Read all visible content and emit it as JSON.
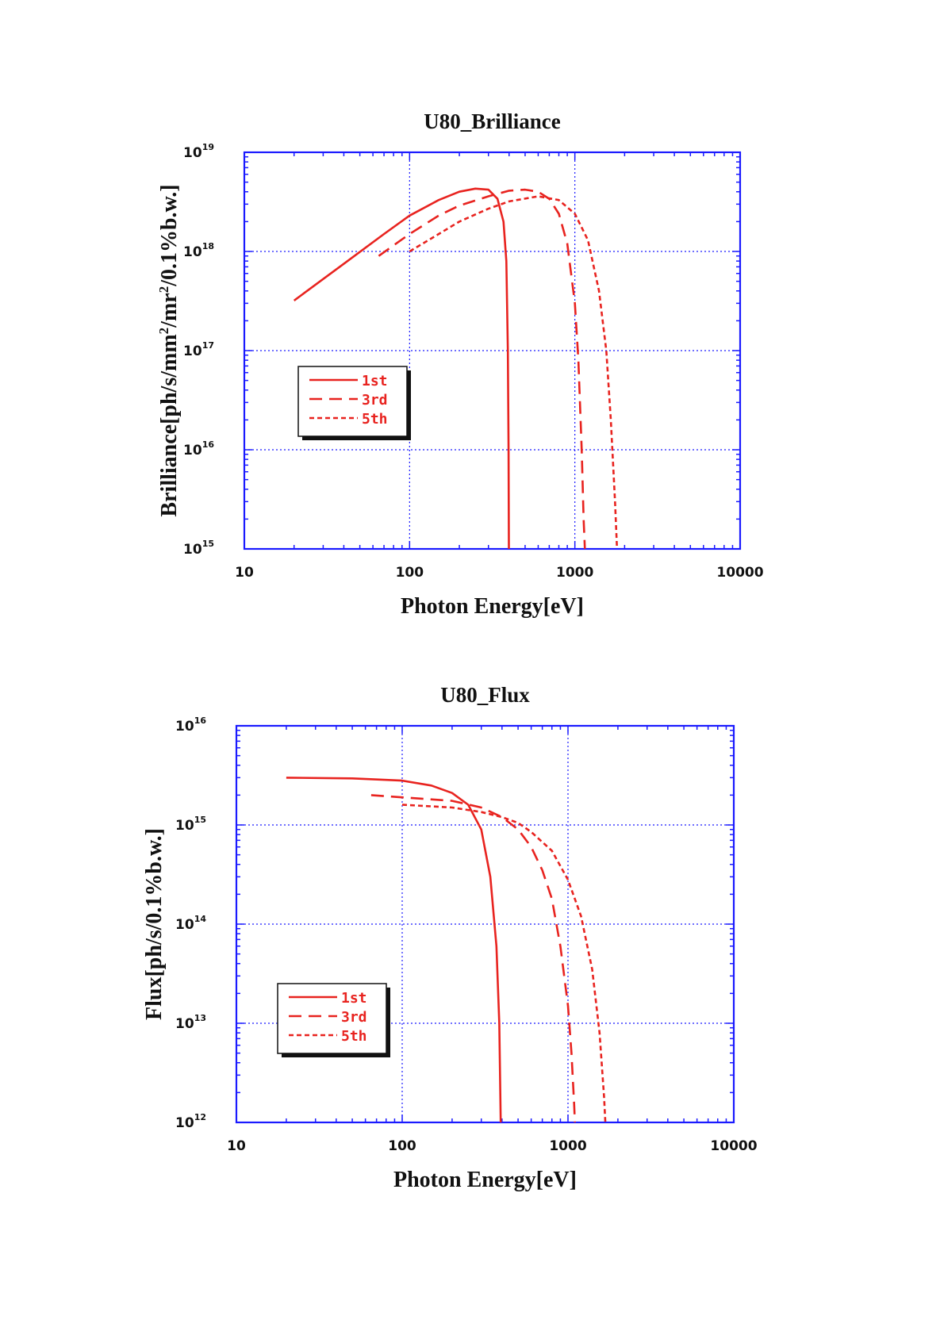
{
  "colors": {
    "axis": "#1a1aff",
    "grid": "#1a1aff",
    "series": "#e8231f",
    "text": "#111111"
  },
  "chart_data": [
    {
      "type": "line",
      "title": "U80_Brilliance",
      "xlabel": "Photon Energy[eV]",
      "ylabel_parts": [
        "Brilliance[ph/s/mm",
        "2",
        "/mr",
        "2",
        "/0.1%b.w.]"
      ],
      "xscale": "log",
      "yscale": "log",
      "xlim": [
        10,
        10000
      ],
      "ylim": [
        1000000000000000.0,
        1e+19
      ],
      "xticks": [
        "10",
        "100",
        "1000",
        "10000"
      ],
      "yticks": [
        {
          "base": "10",
          "exp": "15",
          "value": 1000000000000000.0
        },
        {
          "base": "10",
          "exp": "16",
          "value": 1e+16
        },
        {
          "base": "10",
          "exp": "17",
          "value": 1e+17
        },
        {
          "base": "10",
          "exp": "18",
          "value": 1e+18
        },
        {
          "base": "10",
          "exp": "19",
          "value": 1e+19
        }
      ],
      "grid": true,
      "legend": {
        "placement": "center-left"
      },
      "series": [
        {
          "name": "1st",
          "dash": "solid",
          "points": [
            [
              20,
              3.2e+17
            ],
            [
              40,
              7.5e+17
            ],
            [
              70,
              1.5e+18
            ],
            [
              100,
              2.3e+18
            ],
            [
              150,
              3.3e+18
            ],
            [
              200,
              4e+18
            ],
            [
              250,
              4.3e+18
            ],
            [
              300,
              4.2e+18
            ],
            [
              340,
              3.4e+18
            ],
            [
              370,
              2e+18
            ],
            [
              385,
              8e+17
            ],
            [
              393,
              1e+17
            ],
            [
              397,
              1e+16
            ],
            [
              399,
              1000000000000000.0
            ]
          ]
        },
        {
          "name": "3rd",
          "dash": "long",
          "points": [
            [
              65,
              9e+17
            ],
            [
              80,
              1.15e+18
            ],
            [
              100,
              1.5e+18
            ],
            [
              150,
              2.3e+18
            ],
            [
              200,
              2.9e+18
            ],
            [
              300,
              3.6e+18
            ],
            [
              400,
              4.1e+18
            ],
            [
              500,
              4.2e+18
            ],
            [
              600,
              4e+18
            ],
            [
              700,
              3.4e+18
            ],
            [
              800,
              2.4e+18
            ],
            [
              900,
              1.2e+18
            ],
            [
              1000,
              3e+17
            ],
            [
              1050,
              8e+16
            ],
            [
              1100,
              1e+16
            ],
            [
              1130,
              2000000000000000.0
            ],
            [
              1150,
              1000000000000000.0
            ]
          ]
        },
        {
          "name": "5th",
          "dash": "short",
          "points": [
            [
              100,
              1e+18
            ],
            [
              130,
              1.3e+18
            ],
            [
              200,
              2e+18
            ],
            [
              300,
              2.7e+18
            ],
            [
              400,
              3.2e+18
            ],
            [
              600,
              3.6e+18
            ],
            [
              800,
              3.3e+18
            ],
            [
              1000,
              2.4e+18
            ],
            [
              1200,
              1.3e+18
            ],
            [
              1400,
              4e+17
            ],
            [
              1550,
              1e+17
            ],
            [
              1650,
              2e+16
            ],
            [
              1750,
              3000000000000000.0
            ],
            [
              1800,
              1000000000000000.0
            ]
          ]
        }
      ]
    },
    {
      "type": "line",
      "title": "U80_Flux",
      "xlabel": "Photon Energy[eV]",
      "ylabel_parts": [
        "Flux[ph/s/0.1%b.w.]"
      ],
      "xscale": "log",
      "yscale": "log",
      "xlim": [
        10,
        10000
      ],
      "ylim": [
        1000000000000.0,
        1e+16
      ],
      "xticks": [
        "10",
        "100",
        "1000",
        "10000"
      ],
      "yticks": [
        {
          "base": "10",
          "exp": "12",
          "value": 1000000000000.0
        },
        {
          "base": "10",
          "exp": "13",
          "value": 10000000000000.0
        },
        {
          "base": "10",
          "exp": "14",
          "value": 100000000000000.0
        },
        {
          "base": "10",
          "exp": "15",
          "value": 1000000000000000.0
        },
        {
          "base": "10",
          "exp": "16",
          "value": 1e+16
        }
      ],
      "grid": true,
      "legend": {
        "placement": "bottom-left"
      },
      "series": [
        {
          "name": "1st",
          "dash": "solid",
          "points": [
            [
              20,
              3000000000000000.0
            ],
            [
              50,
              2950000000000000.0
            ],
            [
              100,
              2800000000000000.0
            ],
            [
              150,
              2500000000000000.0
            ],
            [
              200,
              2100000000000000.0
            ],
            [
              250,
              1600000000000000.0
            ],
            [
              300,
              900000000000000.0
            ],
            [
              340,
              300000000000000.0
            ],
            [
              370,
              60000000000000.0
            ],
            [
              385,
              10000000000000.0
            ],
            [
              393,
              1000000000000.0
            ]
          ]
        },
        {
          "name": "3rd",
          "dash": "long",
          "points": [
            [
              65,
              2000000000000000.0
            ],
            [
              100,
              1900000000000000.0
            ],
            [
              200,
              1750000000000000.0
            ],
            [
              300,
              1500000000000000.0
            ],
            [
              400,
              1200000000000000.0
            ],
            [
              500,
              900000000000000.0
            ],
            [
              600,
              600000000000000.0
            ],
            [
              700,
              350000000000000.0
            ],
            [
              800,
              180000000000000.0
            ],
            [
              900,
              60000000000000.0
            ],
            [
              1000,
              15000000000000.0
            ],
            [
              1050,
              5000000000000.0
            ],
            [
              1090,
              1500000000000.0
            ],
            [
              1100,
              1000000000000.0
            ]
          ]
        },
        {
          "name": "5th",
          "dash": "short",
          "points": [
            [
              100,
              1600000000000000.0
            ],
            [
              200,
              1500000000000000.0
            ],
            [
              300,
              1350000000000000.0
            ],
            [
              400,
              1200000000000000.0
            ],
            [
              500,
              1050000000000000.0
            ],
            [
              600,
              850000000000000.0
            ],
            [
              800,
              550000000000000.0
            ],
            [
              1000,
              280000000000000.0
            ],
            [
              1200,
              120000000000000.0
            ],
            [
              1400,
              35000000000000.0
            ],
            [
              1550,
              8000000000000.0
            ],
            [
              1650,
              1800000000000.0
            ],
            [
              1680,
              1000000000000.0
            ]
          ]
        }
      ]
    }
  ]
}
